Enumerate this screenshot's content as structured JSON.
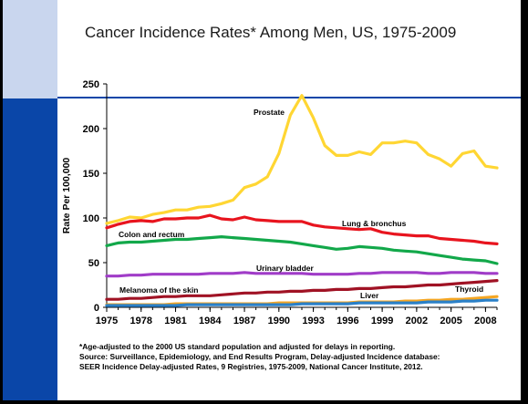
{
  "title": "Cancer Incidence Rates* Among Men, US, 1975-2009",
  "footnote": [
    "*Age-adjusted to the 2000 US standard population and adjusted for delays in reporting.",
    "Source: Surveillance, Epidemiology, and End Results Program, Delay-adjusted Incidence database:",
    "SEER Incidence Delay-adjusted Rates, 9 Registries, 1975-2009, National Cancer Institute, 2012."
  ],
  "chart_data": {
    "type": "line",
    "title": "Cancer Incidence Rates* Among Men, US, 1975-2009",
    "xlabel": "",
    "ylabel": "Rate Per 100,000",
    "xlim": [
      1975,
      2009
    ],
    "ylim": [
      0,
      250
    ],
    "x_ticks": [
      "1975",
      "1978",
      "1981",
      "1984",
      "1987",
      "1990",
      "1993",
      "1996",
      "1999",
      "2002",
      "2005",
      "2008"
    ],
    "y_ticks": [
      "0",
      "50",
      "100",
      "150",
      "200",
      "250"
    ],
    "grid": false,
    "x": [
      1975,
      1976,
      1977,
      1978,
      1979,
      1980,
      1981,
      1982,
      1983,
      1984,
      1985,
      1986,
      1987,
      1988,
      1989,
      1990,
      1991,
      1992,
      1993,
      1994,
      1995,
      1996,
      1997,
      1998,
      1999,
      2000,
      2001,
      2002,
      2003,
      2004,
      2005,
      2006,
      2007,
      2008,
      2009
    ],
    "series": [
      {
        "name": "Prostate",
        "color": "#ffd633",
        "values": [
          94,
          97,
          101,
          100,
          104,
          106,
          109,
          109,
          112,
          113,
          116,
          120,
          134,
          138,
          146,
          172,
          215,
          237,
          212,
          181,
          170,
          170,
          174,
          171,
          184,
          184,
          186,
          184,
          171,
          166,
          158,
          172,
          175,
          158,
          156
        ]
      },
      {
        "name": "Lung & bronchus",
        "color": "#e8141e",
        "values": [
          89,
          93,
          96,
          97,
          96,
          99,
          99,
          100,
          100,
          103,
          99,
          98,
          101,
          98,
          97,
          96,
          96,
          96,
          92,
          90,
          89,
          88,
          87,
          88,
          84,
          82,
          81,
          80,
          80,
          77,
          76,
          75,
          74,
          72,
          71
        ]
      },
      {
        "name": "Colon and rectum",
        "color": "#12a84a",
        "values": [
          69,
          72,
          73,
          73,
          74,
          75,
          76,
          76,
          77,
          78,
          79,
          78,
          77,
          76,
          75,
          74,
          73,
          71,
          69,
          67,
          65,
          66,
          68,
          67,
          66,
          64,
          63,
          62,
          60,
          58,
          56,
          54,
          53,
          52,
          49
        ]
      },
      {
        "name": "Urinary bladder",
        "color": "#a03cc8",
        "values": [
          35,
          35,
          36,
          36,
          37,
          37,
          37,
          37,
          37,
          38,
          38,
          38,
          39,
          38,
          38,
          38,
          38,
          38,
          37,
          37,
          37,
          37,
          38,
          38,
          39,
          39,
          39,
          39,
          38,
          38,
          39,
          39,
          39,
          38,
          38
        ]
      },
      {
        "name": "Melanoma of the skin",
        "color": "#a01224",
        "values": [
          9,
          9,
          10,
          10,
          11,
          12,
          12,
          13,
          13,
          13,
          14,
          15,
          16,
          16,
          17,
          17,
          18,
          18,
          19,
          19,
          20,
          20,
          21,
          21,
          22,
          23,
          23,
          24,
          25,
          25,
          26,
          27,
          28,
          29,
          30
        ]
      },
      {
        "name": "Thyroid",
        "color": "#f5a623",
        "values": [
          3,
          3,
          3,
          3,
          3,
          3,
          4,
          4,
          4,
          4,
          4,
          4,
          4,
          4,
          4,
          5,
          5,
          5,
          5,
          5,
          5,
          5,
          6,
          6,
          6,
          6,
          7,
          7,
          8,
          8,
          9,
          9,
          10,
          11,
          12
        ]
      },
      {
        "name": "Liver",
        "color": "#2a80c8",
        "values": [
          2,
          2,
          2,
          2,
          2,
          2,
          2,
          3,
          3,
          3,
          3,
          3,
          3,
          3,
          3,
          3,
          3,
          4,
          4,
          4,
          4,
          4,
          5,
          5,
          5,
          5,
          5,
          5,
          6,
          6,
          6,
          7,
          7,
          8,
          8
        ]
      }
    ],
    "annotations": [
      {
        "text": "Prostate",
        "series": "Prostate"
      },
      {
        "text": "Lung & bronchus",
        "series": "Lung & bronchus"
      },
      {
        "text": "Colon and rectum",
        "series": "Colon and rectum"
      },
      {
        "text": "Urinary bladder",
        "series": "Urinary bladder"
      },
      {
        "text": "Melanoma of the skin",
        "series": "Melanoma of the skin"
      },
      {
        "text": "Thyroid",
        "series": "Thyroid"
      },
      {
        "text": "Liver",
        "series": "Liver"
      }
    ]
  }
}
